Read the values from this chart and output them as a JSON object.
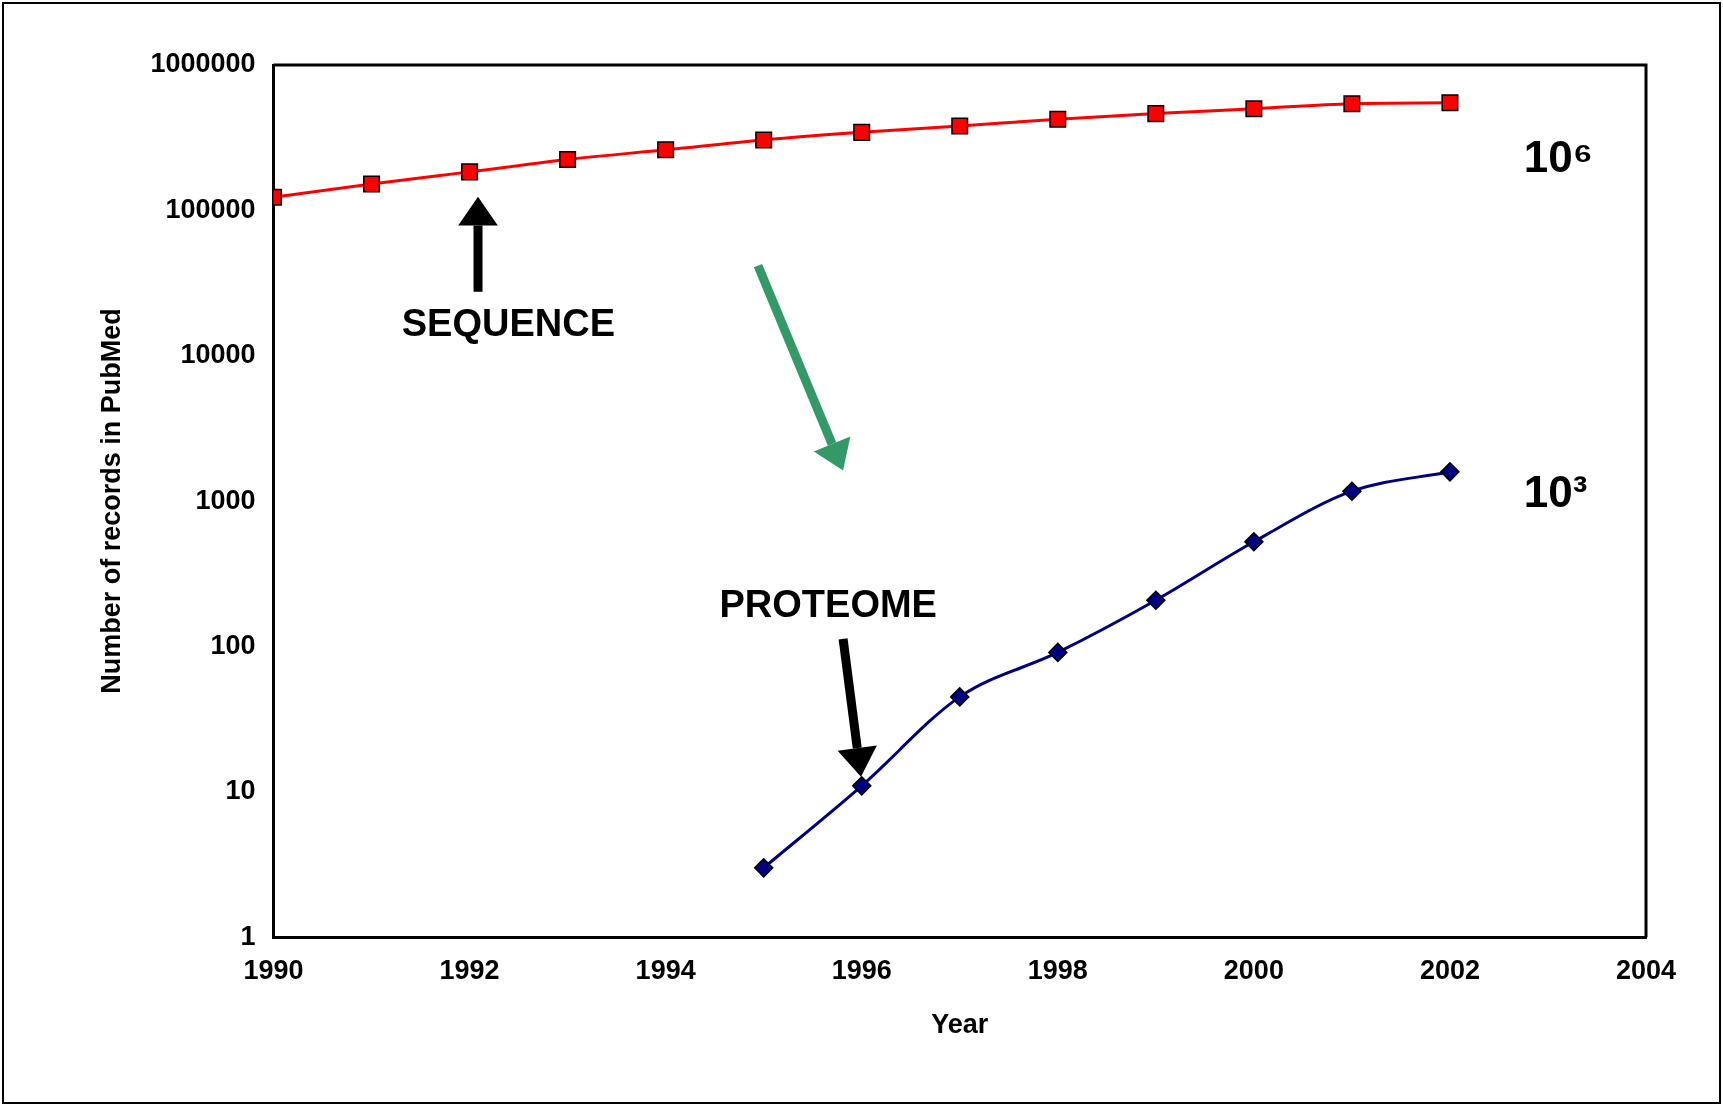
{
  "chart_data": {
    "type": "line",
    "xlabel": "Year",
    "ylabel": "Number of records in PubMed",
    "log": "y",
    "grid": false,
    "legend": false,
    "xlim": [
      1990,
      2004
    ],
    "xticks": [
      1990,
      1992,
      1994,
      1996,
      1998,
      2000,
      2002,
      2004
    ],
    "ylim": [
      1,
      1000000
    ],
    "yticks": [
      1,
      10,
      100,
      1000,
      10000,
      100000,
      1000000
    ],
    "series": [
      {
        "color": "#ff0000",
        "marker": "square",
        "x": [
          1990,
          1991,
          1992,
          1993,
          1994,
          1995,
          1996,
          1997,
          1998,
          1999,
          2000,
          2001,
          2002
        ],
        "values": [
          123000,
          152000,
          184000,
          224000,
          261000,
          305000,
          344000,
          380000,
          424000,
          463000,
          500000,
          542000,
          550000
        ]
      },
      {
        "color": "#000080",
        "marker": "diamond",
        "x": [
          1995,
          1996,
          1997,
          1998,
          1999,
          2000,
          2001,
          2002
        ],
        "values": [
          3,
          11,
          45,
          91,
          208,
          525,
          1170,
          1590
        ]
      }
    ],
    "annotations": [
      "SEQUENCE",
      "PROTEOME",
      "10⁶",
      "10³"
    ]
  }
}
